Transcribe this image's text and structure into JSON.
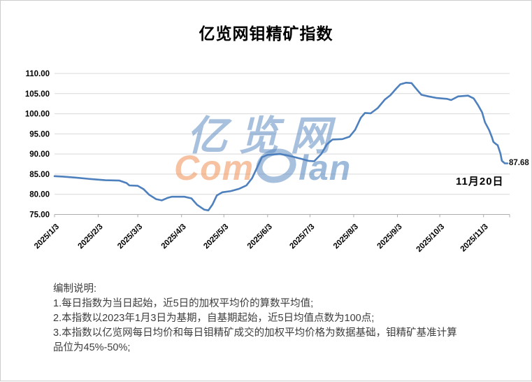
{
  "chart_data": {
    "type": "line",
    "title": "亿览网钼精矿指数",
    "xlabel": "",
    "ylabel": "",
    "ylim": [
      75,
      110
    ],
    "ytick_labels": [
      "110.00",
      "105.00",
      "100.00",
      "95.00",
      "90.00",
      "85.00",
      "80.00",
      "75.00"
    ],
    "xticks": [
      "2025/1/3",
      "2025/2/3",
      "2025/3/3",
      "2025/4/3",
      "2025/5/3",
      "2025/6/3",
      "2025/7/3",
      "2025/8/3",
      "2025/9/3",
      "2025/10/3",
      "2025/11/3"
    ],
    "x_range": [
      "2025/1/3",
      "2025/11/20"
    ],
    "grid": "horizontal-only",
    "legend": "none",
    "line_color": "#4E80BD",
    "grid_color": "#D9D9D9",
    "axis_color": "#ADADAD",
    "end_label": "87.68",
    "annotation": "11月20日",
    "series": [
      {
        "name": "亿览网钼精矿指数",
        "points": [
          [
            "2025/1/3",
            84.5
          ],
          [
            "2025/1/9",
            84.4
          ],
          [
            "2025/1/19",
            84.1
          ],
          [
            "2025/1/28",
            83.8
          ],
          [
            "2025/2/8",
            83.5
          ],
          [
            "2025/2/18",
            83.4
          ],
          [
            "2025/2/23",
            82.8
          ],
          [
            "2025/2/25",
            82.2
          ],
          [
            "2025/3/3",
            82.1
          ],
          [
            "2025/3/7",
            81.3
          ],
          [
            "2025/3/11",
            79.9
          ],
          [
            "2025/3/16",
            78.8
          ],
          [
            "2025/3/20",
            78.5
          ],
          [
            "2025/3/24",
            79.1
          ],
          [
            "2025/3/27",
            79.4
          ],
          [
            "2025/4/5",
            79.4
          ],
          [
            "2025/4/10",
            79.0
          ],
          [
            "2025/4/14",
            77.4
          ],
          [
            "2025/4/19",
            76.2
          ],
          [
            "2025/4/22",
            76.0
          ],
          [
            "2025/4/25",
            77.5
          ],
          [
            "2025/4/28",
            79.7
          ],
          [
            "2025/5/2",
            80.5
          ],
          [
            "2025/5/8",
            80.8
          ],
          [
            "2025/5/14",
            81.4
          ],
          [
            "2025/5/19",
            82.2
          ],
          [
            "2025/5/23",
            84.0
          ],
          [
            "2025/5/27",
            87.0
          ],
          [
            "2025/5/30",
            89.2
          ],
          [
            "2025/6/3",
            89.8
          ],
          [
            "2025/6/12",
            90.0
          ],
          [
            "2025/6/19",
            89.5
          ],
          [
            "2025/6/27",
            88.8
          ],
          [
            "2025/7/2",
            88.3
          ],
          [
            "2025/7/6",
            88.2
          ],
          [
            "2025/7/11",
            90.0
          ],
          [
            "2025/7/15",
            92.4
          ],
          [
            "2025/7/19",
            93.6
          ],
          [
            "2025/7/26",
            93.7
          ],
          [
            "2025/7/31",
            94.3
          ],
          [
            "2025/8/4",
            96.0
          ],
          [
            "2025/8/8",
            99.0
          ],
          [
            "2025/8/11",
            100.2
          ],
          [
            "2025/8/15",
            100.1
          ],
          [
            "2025/8/20",
            101.4
          ],
          [
            "2025/8/25",
            103.5
          ],
          [
            "2025/8/29",
            104.6
          ],
          [
            "2025/9/2",
            106.2
          ],
          [
            "2025/9/5",
            107.3
          ],
          [
            "2025/9/9",
            107.7
          ],
          [
            "2025/9/13",
            107.6
          ],
          [
            "2025/9/17",
            105.9
          ],
          [
            "2025/9/20",
            104.7
          ],
          [
            "2025/9/25",
            104.3
          ],
          [
            "2025/10/1",
            103.9
          ],
          [
            "2025/10/8",
            103.7
          ],
          [
            "2025/10/11",
            103.4
          ],
          [
            "2025/10/16",
            104.3
          ],
          [
            "2025/10/23",
            104.5
          ],
          [
            "2025/10/27",
            103.8
          ],
          [
            "2025/10/30",
            102.2
          ],
          [
            "2025/11/2",
            100.3
          ],
          [
            "2025/11/4",
            97.9
          ],
          [
            "2025/11/7",
            95.9
          ],
          [
            "2025/11/9",
            94.1
          ],
          [
            "2025/11/10",
            93.0
          ],
          [
            "2025/11/12",
            92.4
          ],
          [
            "2025/11/13",
            92.2
          ],
          [
            "2025/11/15",
            90.1
          ],
          [
            "2025/11/16",
            88.3
          ],
          [
            "2025/11/18",
            87.7
          ],
          [
            "2025/11/20",
            87.68
          ]
        ]
      }
    ]
  },
  "watermark": {
    "cjk": "亿览网",
    "brand_prefix": "Com",
    "brand_suffix": "lan"
  },
  "notes": {
    "lines": [
      "编制说明:",
      "1.每日指数为当日起始，近5日的加权平均价的算数平均值;",
      "2.本指数以2023年1月3日为基期，自基期起始，近5日均值点数为100点;",
      "3.本指数以亿览网每日均价和每日钼精矿成交的加权平均价格为数据基础，钼精矿基准计算",
      "品位为45%-50%;"
    ]
  }
}
